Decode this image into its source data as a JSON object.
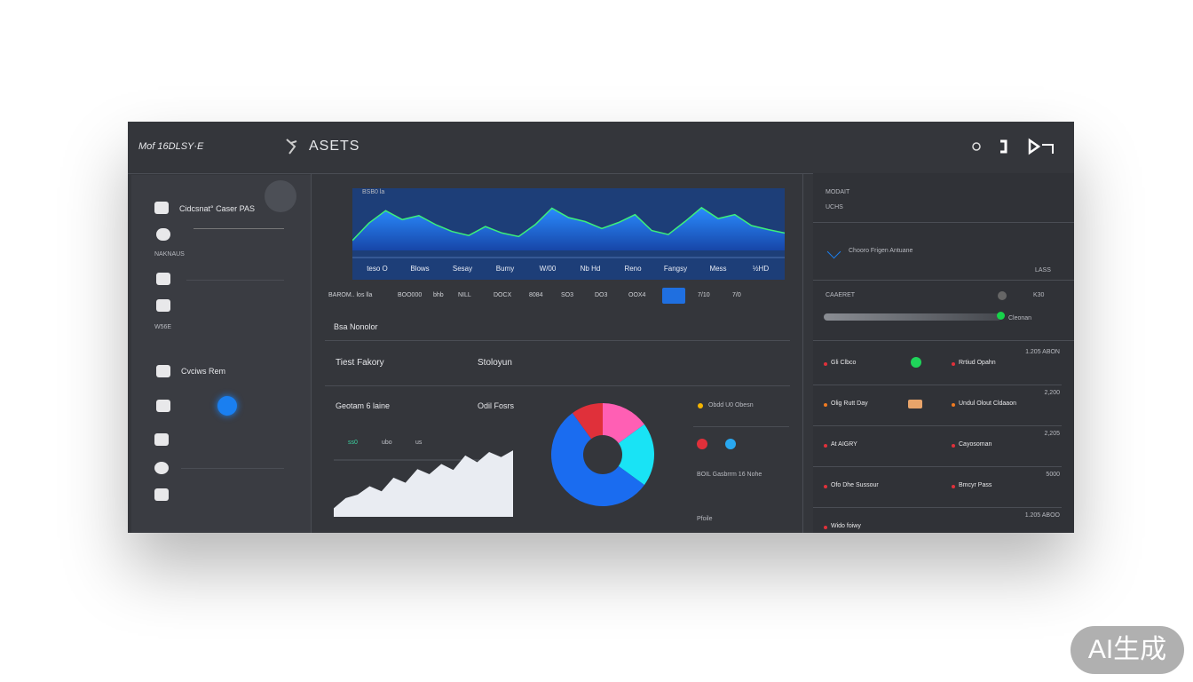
{
  "header": {
    "brand": "Mof 16DLSY·E",
    "title": "ASETS"
  },
  "sidebar": {
    "items": [
      "Cidcsnat° Caser PAS",
      "NAKNAUS",
      "W56E",
      "Cvciws Rem"
    ]
  },
  "main_chart": {
    "type": "area",
    "label": "BSB0 la",
    "x_labels": [
      "teso O",
      "Blows",
      "Sesay",
      "Bumy",
      "W/00",
      "Nb Hd",
      "Reno",
      "Fangsy",
      "Mess",
      "½HD"
    ],
    "values": [
      20,
      55,
      80,
      62,
      70,
      52,
      38,
      30,
      48,
      35,
      28,
      52,
      85,
      66,
      58,
      44,
      56,
      72,
      40,
      32,
      58,
      86,
      64,
      72,
      50,
      42,
      35
    ],
    "ylim": [
      0,
      100
    ]
  },
  "toolbar": [
    "BAROM.. los lla",
    "BOO000",
    "bhb",
    "NILL",
    "DOCX",
    "8084",
    "SO3",
    "DO3",
    "OOX4",
    "7/10",
    "7/0"
  ],
  "section_title": "Bsa Nonolor",
  "row1": [
    "Tiest Fakory",
    "Stoloyun"
  ],
  "row2": [
    "Geotam 6 laine",
    "Odil Fosrs"
  ],
  "small_chart": {
    "type": "area",
    "labels": [
      "ss0",
      "ubo",
      "us"
    ],
    "values": [
      10,
      22,
      26,
      36,
      30,
      46,
      40,
      56,
      50,
      62,
      55,
      72,
      64,
      76,
      70,
      78
    ],
    "ylim": [
      0,
      100
    ]
  },
  "donut": {
    "type": "pie",
    "values": [
      15,
      20,
      55,
      10
    ],
    "colors": [
      "#ff5fb4",
      "#19e3f5",
      "#1a6cf0",
      "#e0303a"
    ]
  },
  "donut_legend": [
    "Obdd U0 Obesn",
    "BOIL Gasbrrm 16 Nohe",
    "Pfoile"
  ],
  "right_panel": {
    "top": [
      "MODAIT",
      "UCHS"
    ],
    "feature": "Chooro Frigen Antuane",
    "feature_note": "LASS",
    "setting": [
      "CAAERET",
      "K30"
    ],
    "progress_label": "Cleonan",
    "rows": [
      {
        "left": "Gli Clbco",
        "right": "Rrtiud Opahn",
        "amount": "1.205 ABON"
      },
      {
        "left": "Olig Rutt Day",
        "right": "Undul Olout Cldaaon",
        "amount": "2,200"
      },
      {
        "left": "At AIGRY",
        "right": "Cayosoman",
        "amount": "2,205"
      },
      {
        "left": "Ofo Dhe Sussour",
        "right": "Bmcyr Pass",
        "amount": "5000"
      },
      {
        "left": "Wido foiwy",
        "right": "",
        "amount": "1.205 ABOO"
      }
    ]
  },
  "watermark": "AI生成"
}
